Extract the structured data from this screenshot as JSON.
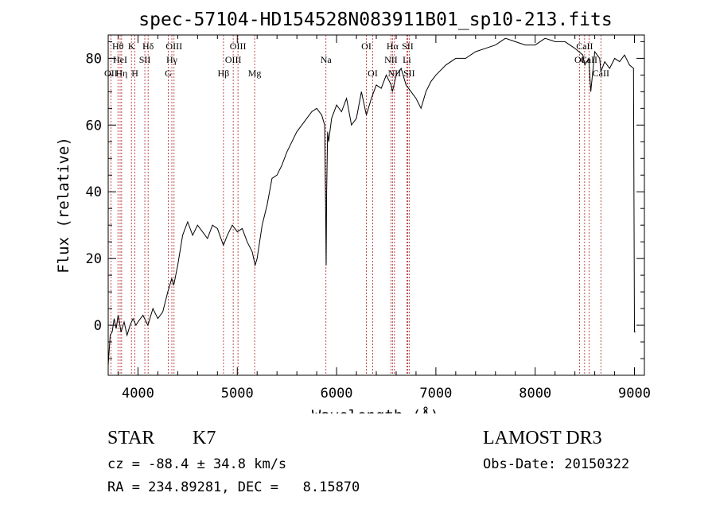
{
  "chart_data": {
    "type": "line",
    "title": "spec-57104-HD154528N083911B01_sp10-213.fits",
    "xlabel": "Wavelength (Å)",
    "ylabel": "Flux (relative)",
    "xlim": [
      3700,
      9100
    ],
    "ylim": [
      -15,
      87
    ],
    "xticks": [
      4000,
      5000,
      6000,
      7000,
      8000,
      9000
    ],
    "yticks": [
      0,
      20,
      40,
      60,
      80
    ],
    "line_color": "#000000",
    "marker_color": "#b22222",
    "series": [
      {
        "name": "flux",
        "x": [
          3700,
          3720,
          3740,
          3760,
          3780,
          3800,
          3830,
          3860,
          3890,
          3920,
          3950,
          3980,
          4000,
          4050,
          4100,
          4150,
          4200,
          4250,
          4300,
          4340,
          4360,
          4400,
          4450,
          4500,
          4550,
          4600,
          4650,
          4700,
          4750,
          4800,
          4860,
          4900,
          4950,
          5000,
          5050,
          5100,
          5150,
          5180,
          5200,
          5250,
          5300,
          5350,
          5400,
          5450,
          5500,
          5550,
          5600,
          5650,
          5700,
          5750,
          5800,
          5850,
          5880,
          5890,
          5895,
          5900,
          5910,
          5920,
          5950,
          6000,
          6050,
          6100,
          6150,
          6200,
          6250,
          6300,
          6350,
          6400,
          6450,
          6500,
          6550,
          6563,
          6600,
          6650,
          6700,
          6750,
          6800,
          6850,
          6900,
          6950,
          7000,
          7100,
          7200,
          7300,
          7400,
          7500,
          7600,
          7700,
          7800,
          7900,
          8000,
          8100,
          8200,
          8300,
          8400,
          8480,
          8500,
          8540,
          8560,
          8600,
          8650,
          8662,
          8700,
          8750,
          8800,
          8850,
          8900,
          8950,
          8990,
          9000,
          9010
        ],
        "values": [
          -12,
          -3,
          -2,
          2,
          -1,
          3,
          -2,
          1,
          -3,
          0,
          2,
          0,
          1,
          3,
          0,
          5,
          2,
          4,
          10,
          14,
          12,
          18,
          27,
          31,
          27,
          30,
          28,
          26,
          30,
          29,
          24,
          27,
          30,
          28,
          29,
          25,
          22,
          18,
          20,
          30,
          36,
          44,
          45,
          48,
          52,
          55,
          58,
          60,
          62,
          64,
          65,
          63,
          60,
          35,
          18,
          40,
          58,
          55,
          62,
          66,
          64,
          68,
          60,
          62,
          70,
          63,
          68,
          72,
          71,
          75,
          72,
          70,
          75,
          77,
          72,
          70,
          68,
          65,
          70,
          73,
          75,
          78,
          80,
          80,
          82,
          83,
          84,
          86,
          85,
          84,
          84,
          86,
          85,
          85,
          83,
          81,
          78,
          80,
          70,
          82,
          80,
          76,
          79,
          77,
          80,
          79,
          81,
          78,
          77,
          -2,
          -2
        ]
      }
    ],
    "lines": [
      {
        "name": "Hθ",
        "x": 3798,
        "row": 1
      },
      {
        "name": "OII",
        "x": 3727,
        "row": 3
      },
      {
        "name": "HeI",
        "x": 3820,
        "row": 2
      },
      {
        "name": "Hη",
        "x": 3835,
        "row": 3
      },
      {
        "name": "K",
        "x": 3934,
        "row": 1
      },
      {
        "name": "H",
        "x": 3969,
        "row": 3
      },
      {
        "name": "SII",
        "x": 4069,
        "row": 2
      },
      {
        "name": "Hδ",
        "x": 4102,
        "row": 1
      },
      {
        "name": "OIII",
        "x": 4363,
        "row": 1
      },
      {
        "name": "Hγ",
        "x": 4341,
        "row": 2
      },
      {
        "name": "G",
        "x": 4305,
        "row": 3
      },
      {
        "name": "Hβ",
        "x": 4861,
        "row": 3
      },
      {
        "name": "OIII",
        "x": 4959,
        "row": 2
      },
      {
        "name": "OIII",
        "x": 5007,
        "row": 1
      },
      {
        "name": "Mg",
        "x": 5175,
        "row": 3
      },
      {
        "name": "Na",
        "x": 5893,
        "row": 2
      },
      {
        "name": "OI",
        "x": 6300,
        "row": 1
      },
      {
        "name": "OI",
        "x": 6364,
        "row": 3
      },
      {
        "name": "Hα",
        "x": 6563,
        "row": 1
      },
      {
        "name": "NII",
        "x": 6548,
        "row": 2
      },
      {
        "name": "NII",
        "x": 6583,
        "row": 3
      },
      {
        "name": "SII",
        "x": 6716,
        "row": 1
      },
      {
        "name": "Li",
        "x": 6708,
        "row": 2
      },
      {
        "name": "SII",
        "x": 6731,
        "row": 3
      },
      {
        "name": "CaII",
        "x": 8498,
        "row": 1
      },
      {
        "name": "OI",
        "x": 8446,
        "row": 2
      },
      {
        "name": "CaII",
        "x": 8542,
        "row": 2
      },
      {
        "name": "CaII",
        "x": 8662,
        "row": 3
      }
    ]
  },
  "info": {
    "class_label": "STAR",
    "subclass": "K7",
    "survey": "LAMOST DR3",
    "cz": "cz = -88.4 ± 34.8 km/s",
    "obs_date": "Obs-Date: 20150322",
    "radec": "RA = 234.89281, DEC =   8.15870"
  }
}
